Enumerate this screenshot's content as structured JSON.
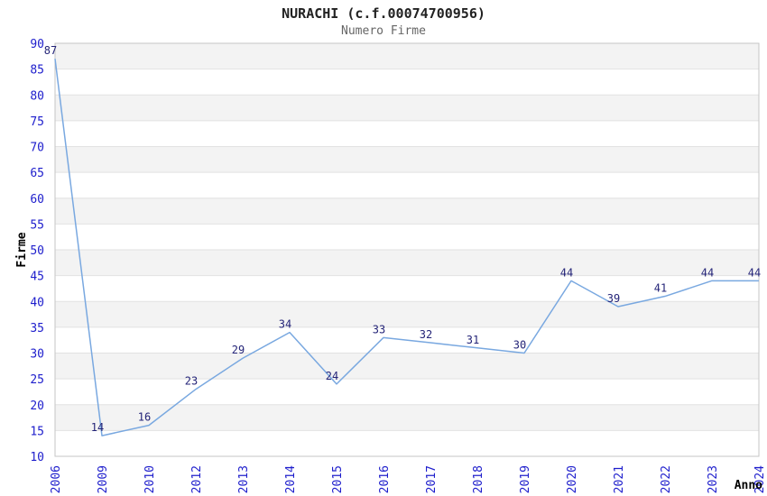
{
  "header": {
    "title": "NURACHI (c.f.00074700956)",
    "subtitle": "Numero Firme"
  },
  "chart_data": {
    "type": "line",
    "title": "NURACHI (c.f.00074700956)",
    "subtitle": "Numero Firme",
    "x": [
      "2006",
      "2009",
      "2010",
      "2012",
      "2013",
      "2014",
      "2015",
      "2016",
      "2017",
      "2018",
      "2019",
      "2020",
      "2021",
      "2022",
      "2023",
      "2024"
    ],
    "values": [
      87,
      14,
      16,
      23,
      29,
      34,
      24,
      33,
      32,
      31,
      30,
      44,
      39,
      41,
      44,
      44
    ],
    "xlabel": "Anno",
    "ylabel": "Firme",
    "ylim": [
      10,
      90
    ],
    "ytick_step": 5,
    "grid": "horizontal",
    "background_bands": true,
    "legend_position": "none",
    "colors": {
      "line": "#79a8e0",
      "tick_label": "#1e1ecc",
      "data_label": "#242478",
      "band_gray": "#f3f3f3",
      "band_white": "#ffffff",
      "gridline": "#e2e2e2",
      "plot_border": "#c6c6c6",
      "title": "#222222",
      "subtitle": "#666666",
      "axis_title": "#000000",
      "background": "#ffffff"
    }
  }
}
